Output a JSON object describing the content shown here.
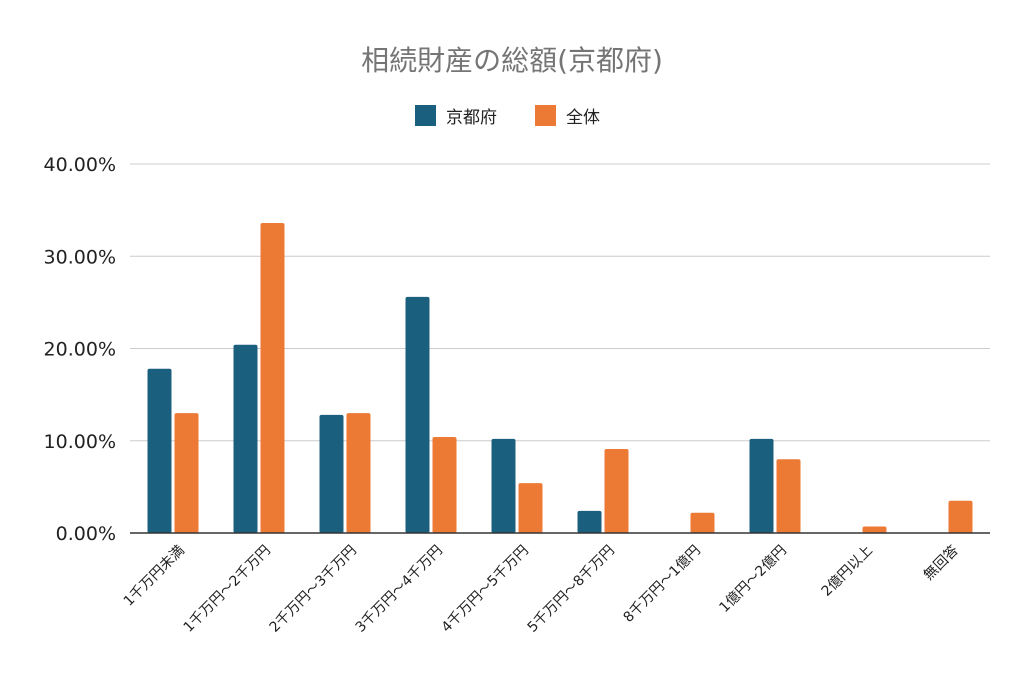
{
  "chart_data": {
    "type": "bar",
    "title": "相続財産の総額(京都府)",
    "xlabel": "",
    "ylabel": "",
    "ylim": [
      0,
      40
    ],
    "y_ticks": [
      "0.00%",
      "10.00%",
      "20.00%",
      "30.00%",
      "40.00%"
    ],
    "grid": true,
    "legend_position": "top-center",
    "categories": [
      "1千万円未満",
      "1千万円～2千万円",
      "2千万円～3千万円",
      "3千万円～4千万円",
      "4千万円～5千万円",
      "5千万円～8千万円",
      "8千万円～1億円",
      "1億円～2億円",
      "2億円以上",
      "無回答"
    ],
    "series": [
      {
        "name": "京都府",
        "color": "#1b5f7e",
        "values": [
          17.8,
          20.4,
          12.8,
          25.6,
          10.2,
          2.4,
          0,
          10.2,
          0,
          0
        ]
      },
      {
        "name": "全体",
        "color": "#ec7a35",
        "values": [
          13.0,
          33.6,
          13.0,
          10.4,
          5.4,
          9.1,
          2.2,
          8.0,
          0.7,
          3.5
        ]
      }
    ]
  }
}
